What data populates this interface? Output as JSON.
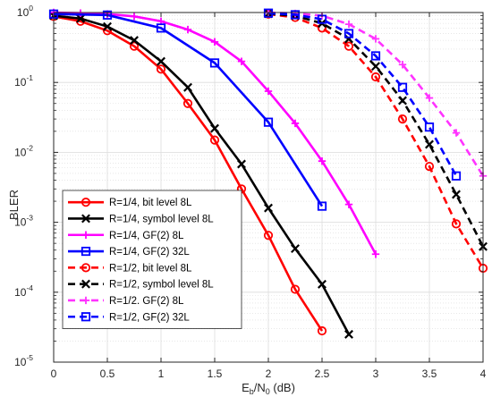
{
  "chart_data": {
    "type": "line",
    "xlabel_main": "E",
    "xlabel_sub1": "b",
    "xlabel_mid": "/N",
    "xlabel_sub2": "0",
    "xlabel_tail": " (dB)",
    "ylabel": "BLER",
    "xlim": [
      0,
      4
    ],
    "ylim": [
      1e-05,
      1
    ],
    "yscale": "log",
    "grid": true,
    "legend_position": "bottom-left",
    "x_ticks": [
      "0",
      "0.5",
      "1",
      "1.5",
      "2",
      "2.5",
      "3",
      "3.5",
      "4"
    ],
    "y_tick_base": "10",
    "y_tick_exponents": [
      "-5",
      "-4",
      "-3",
      "-2",
      "-1",
      "0"
    ],
    "series": [
      {
        "name": "R=1/4, bit level 8L",
        "color": "#ff0000",
        "dash": "solid",
        "marker": "circle",
        "x": [
          0,
          0.25,
          0.5,
          0.75,
          1,
          1.25,
          1.5,
          1.75,
          2,
          2.25,
          2.5
        ],
        "y": [
          0.88,
          0.75,
          0.55,
          0.33,
          0.155,
          0.05,
          0.015,
          0.003,
          0.00065,
          0.00011,
          2.8e-05
        ]
      },
      {
        "name": "R=1/4, symbol level 8L",
        "color": "#000000",
        "dash": "solid",
        "marker": "x",
        "x": [
          0,
          0.25,
          0.5,
          0.75,
          1,
          1.25,
          1.5,
          1.75,
          2,
          2.25,
          2.5,
          2.75
        ],
        "y": [
          0.9,
          0.82,
          0.63,
          0.4,
          0.2,
          0.085,
          0.022,
          0.0068,
          0.0016,
          0.00042,
          0.00013,
          2.5e-05
        ]
      },
      {
        "name": "R=1/4, GF(2) 8L",
        "color": "#ff00ff",
        "dash": "solid",
        "marker": "plus",
        "x": [
          0,
          0.25,
          0.5,
          0.75,
          1,
          1.25,
          1.5,
          1.75,
          2,
          2.25,
          2.5,
          2.75,
          3
        ],
        "y": [
          1,
          0.98,
          0.95,
          0.88,
          0.75,
          0.57,
          0.38,
          0.2,
          0.075,
          0.026,
          0.0075,
          0.0018,
          0.00035
        ]
      },
      {
        "name": "R=1/4, GF(2) 32L",
        "color": "#0000ff",
        "dash": "solid",
        "marker": "square",
        "x": [
          0,
          0.5,
          1,
          1.5,
          2,
          2.5
        ],
        "y": [
          0.95,
          0.92,
          0.6,
          0.19,
          0.027,
          0.0017
        ]
      },
      {
        "name": "R=1/2, bit level 8L",
        "color": "#ff0000",
        "dash": "dashed",
        "marker": "circle",
        "x": [
          2,
          2.25,
          2.5,
          2.75,
          3,
          3.25,
          3.5,
          3.75,
          4
        ],
        "y": [
          0.95,
          0.85,
          0.6,
          0.33,
          0.12,
          0.03,
          0.0063,
          0.00095,
          0.00022
        ]
      },
      {
        "name": "R=1/2, symbol level 8L",
        "color": "#000000",
        "dash": "dashed",
        "marker": "x",
        "x": [
          2,
          2.25,
          2.5,
          2.75,
          3,
          3.25,
          3.5,
          3.75,
          4
        ],
        "y": [
          0.96,
          0.9,
          0.7,
          0.42,
          0.17,
          0.055,
          0.013,
          0.0025,
          0.00045
        ]
      },
      {
        "name": "R=1/2. GF(2) 8L",
        "color": "#ff33ff",
        "dash": "dashed",
        "marker": "plus",
        "x": [
          2,
          2.25,
          2.5,
          2.75,
          3,
          3.25,
          3.5,
          3.75,
          4
        ],
        "y": [
          1,
          0.97,
          0.9,
          0.68,
          0.42,
          0.18,
          0.06,
          0.019,
          0.0046
        ]
      },
      {
        "name": "R=1/2, GF(2) 32L",
        "color": "#0000ff",
        "dash": "dashed",
        "marker": "square",
        "x": [
          2,
          2.25,
          2.5,
          2.75,
          3,
          3.25,
          3.5,
          3.75
        ],
        "y": [
          0.98,
          0.93,
          0.8,
          0.5,
          0.24,
          0.085,
          0.023,
          0.0046
        ]
      }
    ]
  }
}
